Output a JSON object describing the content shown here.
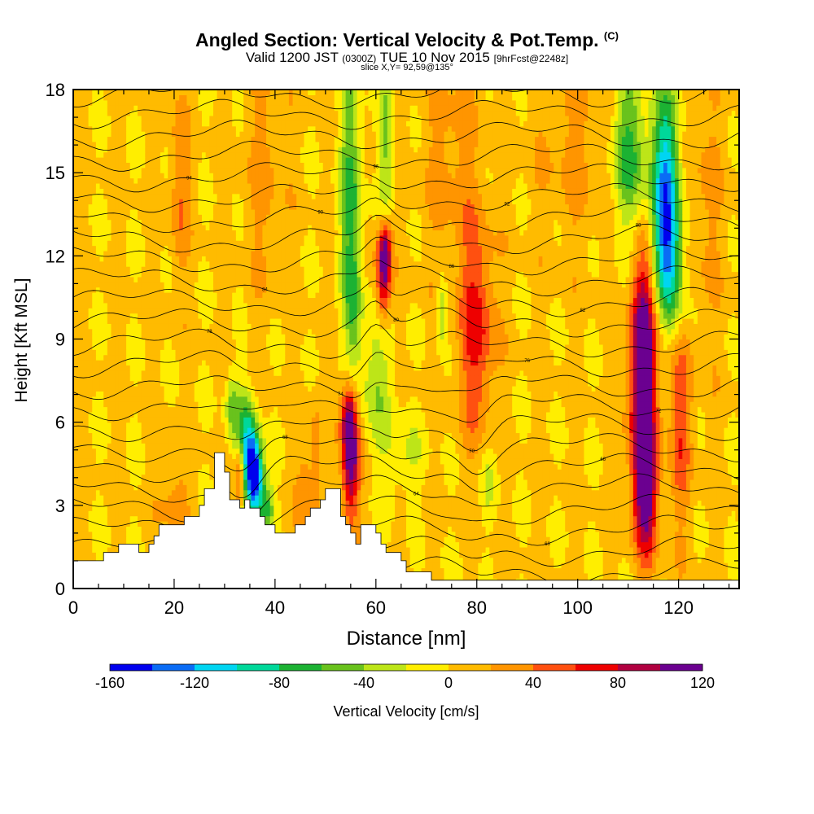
{
  "header": {
    "title": "Angled Section: Vertical Velocity & Pot.Temp.",
    "title_tag": "(C)",
    "sub_valid": "Valid 1200 JST",
    "sub_zulu": "(0300Z)",
    "sub_date": "TUE 10 Nov 2015",
    "sub_fcst": "[9hrFcst@2248z]",
    "slice": "slice X,Y= 92,59@135°"
  },
  "chart_data": {
    "type": "heatmap",
    "xlabel": "Distance [nm]",
    "ylabel": "Height [Kft MSL]",
    "xlim": [
      0,
      132
    ],
    "ylim": [
      0,
      18
    ],
    "x_ticks": [
      0,
      20,
      40,
      60,
      80,
      100,
      120
    ],
    "y_ticks": [
      0,
      3,
      6,
      9,
      12,
      15,
      18
    ],
    "colorbar": {
      "label": "Vertical Velocity [cm/s]",
      "levels": [
        -160,
        -140,
        -120,
        -100,
        -80,
        -60,
        -40,
        -20,
        0,
        20,
        40,
        60,
        80,
        100,
        120
      ],
      "tick_labels": [
        "-160",
        "-120",
        "-80",
        "-40",
        "0",
        "40",
        "80",
        "120"
      ],
      "colors": [
        "#0000ee",
        "#0a6cf5",
        "#00d5f2",
        "#00d89a",
        "#1cb233",
        "#69c21d",
        "#bde518",
        "#ffee00",
        "#ffbb00",
        "#ff9500",
        "#ff5010",
        "#ee0000",
        "#b00040",
        "#6b0090"
      ]
    },
    "terrain": [
      [
        0,
        1.0
      ],
      [
        6,
        1.0
      ],
      [
        6,
        1.3
      ],
      [
        9,
        1.3
      ],
      [
        9,
        1.6
      ],
      [
        13,
        1.6
      ],
      [
        13,
        1.3
      ],
      [
        15,
        1.3
      ],
      [
        15,
        1.6
      ],
      [
        16,
        1.6
      ],
      [
        16,
        1.9
      ],
      [
        17,
        1.9
      ],
      [
        17,
        2.3
      ],
      [
        22,
        2.3
      ],
      [
        22,
        2.6
      ],
      [
        25,
        2.6
      ],
      [
        25,
        3.0
      ],
      [
        26,
        3.0
      ],
      [
        26,
        3.6
      ],
      [
        28,
        3.6
      ],
      [
        28,
        4.9
      ],
      [
        30,
        4.9
      ],
      [
        30,
        4.2
      ],
      [
        31,
        4.2
      ],
      [
        31,
        3.2
      ],
      [
        33,
        3.2
      ],
      [
        33,
        2.9
      ],
      [
        34,
        2.9
      ],
      [
        34,
        3.2
      ],
      [
        35,
        3.2
      ],
      [
        35,
        2.9
      ],
      [
        37,
        2.9
      ],
      [
        37,
        2.6
      ],
      [
        38,
        2.6
      ],
      [
        38,
        2.3
      ],
      [
        40,
        2.3
      ],
      [
        40,
        2.0
      ],
      [
        44,
        2.0
      ],
      [
        44,
        2.3
      ],
      [
        46,
        2.3
      ],
      [
        46,
        2.6
      ],
      [
        47,
        2.6
      ],
      [
        47,
        2.9
      ],
      [
        49,
        2.9
      ],
      [
        49,
        3.2
      ],
      [
        50,
        3.2
      ],
      [
        50,
        3.6
      ],
      [
        53,
        3.6
      ],
      [
        53,
        2.6
      ],
      [
        54,
        2.6
      ],
      [
        54,
        2.3
      ],
      [
        55,
        2.3
      ],
      [
        55,
        2.0
      ],
      [
        56,
        2.0
      ],
      [
        56,
        1.6
      ],
      [
        57,
        1.6
      ],
      [
        57,
        2.3
      ],
      [
        60,
        2.3
      ],
      [
        60,
        2.0
      ],
      [
        61,
        2.0
      ],
      [
        61,
        1.6
      ],
      [
        62,
        1.6
      ],
      [
        62,
        1.3
      ],
      [
        65,
        1.3
      ],
      [
        65,
        1.0
      ],
      [
        66,
        1.0
      ],
      [
        66,
        0.6
      ],
      [
        71,
        0.6
      ],
      [
        71,
        0.3
      ],
      [
        132,
        0.3
      ]
    ],
    "contour_labels": [
      "56",
      "58",
      "60",
      "62",
      "64",
      "66",
      "68",
      "70",
      "72",
      "74",
      "76",
      "78",
      "80",
      "82",
      "84",
      "86",
      "88",
      "90",
      "92",
      "94",
      "96"
    ],
    "features": [
      {
        "x": 55.0,
        "y": 4.7,
        "dx": 1.2,
        "dy": 1.6,
        "v": 120
      },
      {
        "x": 54.5,
        "y": 6.3,
        "dx": 1.1,
        "dy": 0.9,
        "v": 60
      },
      {
        "x": 61.5,
        "y": 11.3,
        "dx": 1.0,
        "dy": 1.2,
        "v": 100
      },
      {
        "x": 62.0,
        "y": 12.4,
        "dx": 0.9,
        "dy": 0.8,
        "v": 60
      },
      {
        "x": 80.0,
        "y": 9.3,
        "dx": 2.5,
        "dy": 2.6,
        "v": 65
      },
      {
        "x": 113.0,
        "y": 7.0,
        "dx": 2.0,
        "dy": 2.9,
        "v": 115
      },
      {
        "x": 113.5,
        "y": 3.4,
        "dx": 1.6,
        "dy": 1.6,
        "v": 80
      },
      {
        "x": 113.0,
        "y": 10.0,
        "dx": 1.5,
        "dy": 1.6,
        "v": 45
      },
      {
        "x": 120.5,
        "y": 6.0,
        "dx": 1.6,
        "dy": 2.5,
        "v": 48
      },
      {
        "x": 36.0,
        "y": 4.0,
        "dx": 1.2,
        "dy": 1.0,
        "v": -165
      },
      {
        "x": 34.5,
        "y": 5.3,
        "dx": 1.3,
        "dy": 1.2,
        "v": -90
      },
      {
        "x": 31.5,
        "y": 6.5,
        "dx": 1.0,
        "dy": 0.9,
        "v": -50
      },
      {
        "x": 33.0,
        "y": 4.0,
        "dx": 0.6,
        "dy": 0.8,
        "v": 70
      },
      {
        "x": 38.5,
        "y": 2.9,
        "dx": 1.0,
        "dy": 0.7,
        "v": -60
      },
      {
        "x": 55.0,
        "y": 14.5,
        "dx": 1.6,
        "dy": 3.0,
        "v": -65
      },
      {
        "x": 55.5,
        "y": 10.0,
        "dx": 1.2,
        "dy": 2.0,
        "v": -45
      },
      {
        "x": 62.0,
        "y": 16.0,
        "dx": 1.0,
        "dy": 2.5,
        "v": -45
      },
      {
        "x": 60.0,
        "y": 7.5,
        "dx": 2.5,
        "dy": 1.8,
        "v": -38
      },
      {
        "x": 65.5,
        "y": 4.7,
        "dx": 3.0,
        "dy": 1.0,
        "v": -25
      },
      {
        "x": 73.0,
        "y": 10.0,
        "dx": 0.7,
        "dy": 0.9,
        "v": -50
      },
      {
        "x": 82.5,
        "y": 4.0,
        "dx": 1.2,
        "dy": 1.0,
        "v": -25
      },
      {
        "x": 110.0,
        "y": 15.8,
        "dx": 2.5,
        "dy": 2.0,
        "v": -75
      },
      {
        "x": 117.5,
        "y": 14.5,
        "dx": 2.0,
        "dy": 2.5,
        "v": -125
      },
      {
        "x": 118.0,
        "y": 12.0,
        "dx": 2.0,
        "dy": 1.3,
        "v": -60
      },
      {
        "x": 119.5,
        "y": 10.5,
        "dx": 2.0,
        "dy": 1.2,
        "v": -30
      },
      {
        "x": 21.0,
        "y": 14.5,
        "dx": 1.4,
        "dy": 2.5,
        "v": 35
      },
      {
        "x": 20.0,
        "y": 3.2,
        "dx": 2.0,
        "dy": 1.0,
        "v": 30
      },
      {
        "x": 46.0,
        "y": 3.5,
        "dx": 1.2,
        "dy": 1.4,
        "v": 32
      },
      {
        "x": 48.0,
        "y": 4.5,
        "dx": 0.8,
        "dy": 1.8,
        "v": 25
      },
      {
        "x": 38.0,
        "y": 15.0,
        "dx": 3.0,
        "dy": 3.0,
        "v": 22
      },
      {
        "x": 100.0,
        "y": 16.0,
        "dx": 6.0,
        "dy": 2.5,
        "v": 22
      },
      {
        "x": 75.0,
        "y": 15.5,
        "dx": 4.0,
        "dy": 3.0,
        "v": 25
      },
      {
        "x": 125.0,
        "y": 14.0,
        "dx": 3.0,
        "dy": 4.0,
        "v": 20
      }
    ]
  }
}
